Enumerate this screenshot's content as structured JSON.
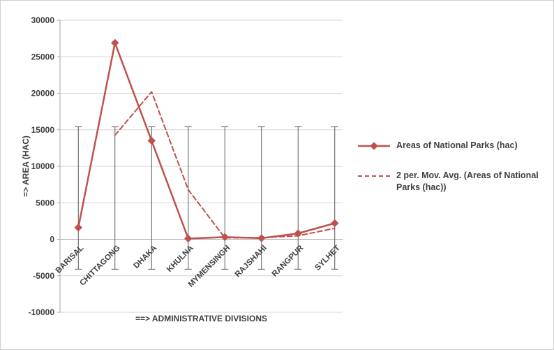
{
  "chart_data": {
    "type": "line",
    "title": "",
    "categories": [
      "BARISAL",
      "CHITTAGONG",
      "DHAKA",
      "KHULNA",
      "MYMENSINGH",
      "RAJSHAHI",
      "RANGPUR",
      "SYLHET"
    ],
    "series": [
      {
        "name": "Areas of National Parks (hac)",
        "line_style": "solid",
        "marker": "diamond",
        "values": [
          1600,
          26900,
          13500,
          100,
          300,
          150,
          800,
          2200
        ]
      },
      {
        "name": "2 per. Mov. Avg. (Areas of National Parks (hac))",
        "line_style": "dashed",
        "marker": "none",
        "values": [
          null,
          14250,
          20200,
          6800,
          200,
          225,
          475,
          1500
        ]
      }
    ],
    "high_low_lines": {
      "top": 15400,
      "bottom": -4100
    },
    "xlabel": "==> ADMINISTRATIVE DIVISIONS",
    "ylabel": "=> AREA (HAC)",
    "ylim": [
      -10000,
      30000
    ],
    "ytick_step": 5000,
    "yticks": [
      -10000,
      -5000,
      0,
      5000,
      10000,
      15000,
      20000,
      25000,
      30000
    ],
    "grid": true,
    "legend_position": "right",
    "colors": {
      "series": "#C0504D",
      "grid": "#D6D6D6",
      "axis": "#A6A6A6",
      "text": "#404040",
      "high_low": "#595959",
      "background": "#FFFFFF",
      "border": "#CFCFCF"
    }
  }
}
